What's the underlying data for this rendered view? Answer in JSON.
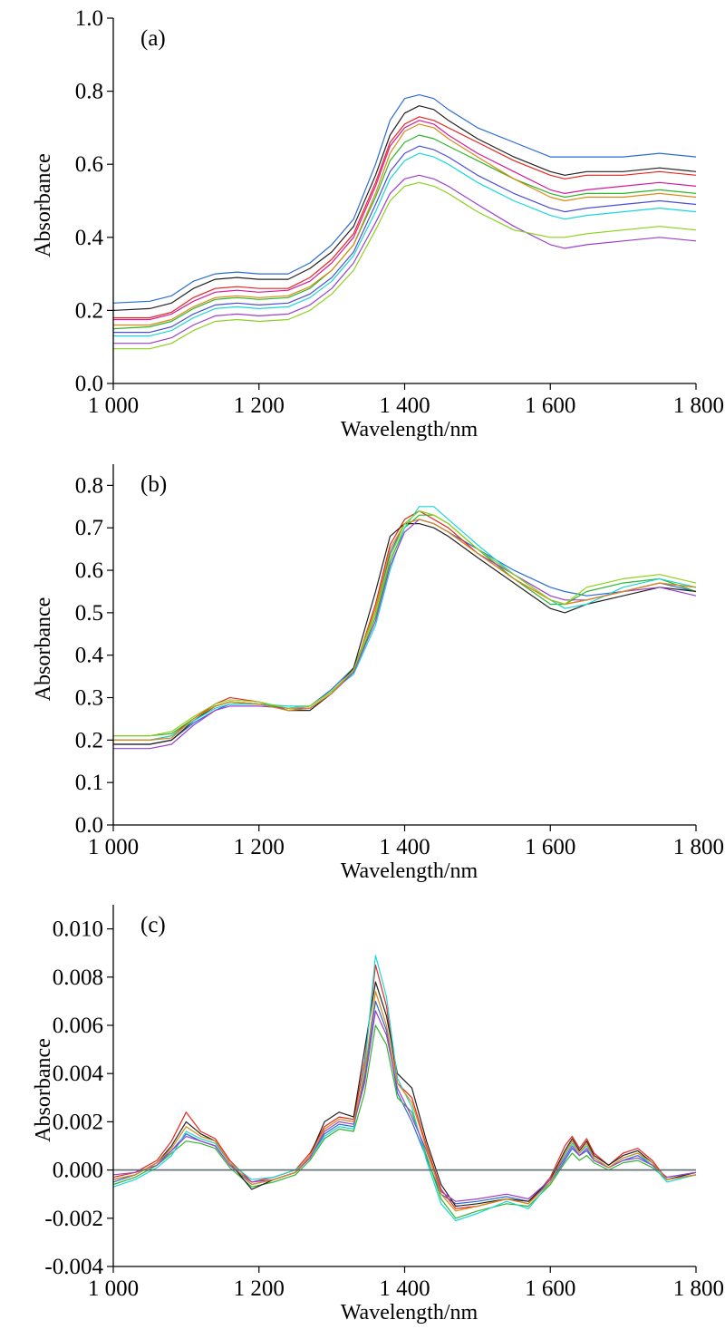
{
  "chart_data": [
    {
      "type": "line",
      "panel_label": "(a)",
      "xlabel": "Wavelength/nm",
      "ylabel": "Absorbance",
      "xlim": [
        1000,
        1800
      ],
      "ylim": [
        0.0,
        1.0
      ],
      "xticks": [
        1000,
        1200,
        1400,
        1600,
        1800
      ],
      "xtick_labels": [
        "1 000",
        "1 200",
        "1 400",
        "1 600",
        "1 800"
      ],
      "yticks": [
        0.0,
        0.2,
        0.4,
        0.6,
        0.8,
        1.0
      ],
      "ytick_labels": [
        "0.0",
        "0.2",
        "0.4",
        "0.6",
        "0.8",
        "1.0"
      ],
      "zero_line": false,
      "x": [
        1000,
        1050,
        1080,
        1110,
        1140,
        1170,
        1200,
        1240,
        1270,
        1300,
        1330,
        1360,
        1380,
        1400,
        1420,
        1440,
        1460,
        1500,
        1550,
        1600,
        1620,
        1650,
        1700,
        1750,
        1800
      ],
      "series": [
        {
          "color": "#2a6cd6",
          "values": [
            0.22,
            0.225,
            0.24,
            0.28,
            0.3,
            0.305,
            0.3,
            0.3,
            0.33,
            0.38,
            0.45,
            0.6,
            0.72,
            0.78,
            0.79,
            0.78,
            0.75,
            0.7,
            0.66,
            0.62,
            0.62,
            0.62,
            0.62,
            0.63,
            0.62
          ]
        },
        {
          "color": "#e8251f",
          "values": [
            0.18,
            0.18,
            0.195,
            0.235,
            0.26,
            0.265,
            0.26,
            0.26,
            0.29,
            0.34,
            0.41,
            0.55,
            0.66,
            0.71,
            0.73,
            0.72,
            0.7,
            0.66,
            0.61,
            0.57,
            0.56,
            0.57,
            0.57,
            0.58,
            0.57
          ]
        },
        {
          "color": "#2fb52c",
          "values": [
            0.15,
            0.155,
            0.17,
            0.205,
            0.23,
            0.235,
            0.23,
            0.235,
            0.26,
            0.31,
            0.38,
            0.51,
            0.61,
            0.66,
            0.68,
            0.67,
            0.65,
            0.61,
            0.56,
            0.52,
            0.51,
            0.52,
            0.52,
            0.53,
            0.52
          ]
        },
        {
          "color": "#222222",
          "values": [
            0.2,
            0.205,
            0.22,
            0.26,
            0.285,
            0.29,
            0.285,
            0.285,
            0.315,
            0.36,
            0.43,
            0.57,
            0.68,
            0.74,
            0.76,
            0.75,
            0.72,
            0.67,
            0.62,
            0.58,
            0.57,
            0.58,
            0.58,
            0.59,
            0.58
          ]
        },
        {
          "color": "#1ad6d6",
          "values": [
            0.13,
            0.13,
            0.145,
            0.18,
            0.205,
            0.21,
            0.205,
            0.21,
            0.235,
            0.28,
            0.35,
            0.47,
            0.56,
            0.61,
            0.63,
            0.62,
            0.6,
            0.55,
            0.5,
            0.46,
            0.45,
            0.46,
            0.47,
            0.48,
            0.47
          ]
        },
        {
          "color": "#9b3fd1",
          "values": [
            0.11,
            0.11,
            0.125,
            0.16,
            0.185,
            0.19,
            0.185,
            0.19,
            0.215,
            0.26,
            0.33,
            0.44,
            0.52,
            0.56,
            0.57,
            0.56,
            0.54,
            0.49,
            0.43,
            0.38,
            0.37,
            0.38,
            0.39,
            0.4,
            0.39
          ]
        },
        {
          "color": "#d98b12",
          "values": [
            0.16,
            0.16,
            0.175,
            0.21,
            0.235,
            0.24,
            0.235,
            0.24,
            0.265,
            0.31,
            0.38,
            0.52,
            0.63,
            0.69,
            0.71,
            0.7,
            0.67,
            0.62,
            0.56,
            0.51,
            0.5,
            0.51,
            0.51,
            0.52,
            0.51
          ]
        },
        {
          "color": "#8cd11a",
          "values": [
            0.095,
            0.095,
            0.11,
            0.145,
            0.17,
            0.175,
            0.17,
            0.175,
            0.2,
            0.245,
            0.31,
            0.42,
            0.5,
            0.54,
            0.55,
            0.54,
            0.52,
            0.47,
            0.42,
            0.4,
            0.4,
            0.41,
            0.42,
            0.43,
            0.42
          ]
        },
        {
          "color": "#d61a9a",
          "values": [
            0.175,
            0.175,
            0.19,
            0.225,
            0.25,
            0.255,
            0.25,
            0.255,
            0.28,
            0.33,
            0.4,
            0.54,
            0.65,
            0.7,
            0.72,
            0.71,
            0.68,
            0.63,
            0.58,
            0.53,
            0.52,
            0.53,
            0.54,
            0.55,
            0.54
          ]
        },
        {
          "color": "#4c4cd6",
          "values": [
            0.14,
            0.14,
            0.155,
            0.19,
            0.215,
            0.22,
            0.215,
            0.22,
            0.245,
            0.29,
            0.36,
            0.49,
            0.58,
            0.63,
            0.65,
            0.64,
            0.62,
            0.57,
            0.52,
            0.48,
            0.47,
            0.48,
            0.49,
            0.5,
            0.49
          ]
        }
      ]
    },
    {
      "type": "line",
      "panel_label": "(b)",
      "xlabel": "Wavelength/nm",
      "ylabel": "Absorbance",
      "xlim": [
        1000,
        1800
      ],
      "ylim": [
        0.0,
        0.85
      ],
      "xticks": [
        1000,
        1200,
        1400,
        1600,
        1800
      ],
      "xtick_labels": [
        "1 000",
        "1 200",
        "1 400",
        "1 600",
        "1 800"
      ],
      "yticks": [
        0.0,
        0.1,
        0.2,
        0.3,
        0.4,
        0.5,
        0.6,
        0.7,
        0.8
      ],
      "ytick_labels": [
        "0.0",
        "0.1",
        "0.2",
        "0.3",
        "0.4",
        "0.5",
        "0.6",
        "0.7",
        "0.8"
      ],
      "zero_line": false,
      "x": [
        1000,
        1050,
        1080,
        1110,
        1140,
        1160,
        1200,
        1240,
        1270,
        1300,
        1330,
        1360,
        1380,
        1400,
        1420,
        1440,
        1460,
        1500,
        1550,
        1600,
        1620,
        1650,
        1700,
        1750,
        1800
      ],
      "series": [
        {
          "color": "#2a6cd6",
          "values": [
            0.19,
            0.19,
            0.2,
            0.24,
            0.27,
            0.285,
            0.285,
            0.275,
            0.28,
            0.32,
            0.37,
            0.5,
            0.64,
            0.71,
            0.72,
            0.71,
            0.69,
            0.65,
            0.6,
            0.56,
            0.55,
            0.54,
            0.55,
            0.57,
            0.55
          ]
        },
        {
          "color": "#e8251f",
          "values": [
            0.2,
            0.2,
            0.21,
            0.25,
            0.285,
            0.3,
            0.29,
            0.27,
            0.275,
            0.31,
            0.36,
            0.52,
            0.66,
            0.72,
            0.74,
            0.72,
            0.7,
            0.64,
            0.58,
            0.53,
            0.52,
            0.53,
            0.55,
            0.57,
            0.56
          ]
        },
        {
          "color": "#2fb52c",
          "values": [
            0.21,
            0.21,
            0.215,
            0.25,
            0.28,
            0.29,
            0.285,
            0.275,
            0.28,
            0.315,
            0.36,
            0.49,
            0.62,
            0.7,
            0.73,
            0.73,
            0.71,
            0.65,
            0.58,
            0.52,
            0.52,
            0.55,
            0.57,
            0.58,
            0.55
          ]
        },
        {
          "color": "#222222",
          "values": [
            0.19,
            0.19,
            0.2,
            0.245,
            0.28,
            0.29,
            0.285,
            0.27,
            0.27,
            0.31,
            0.37,
            0.55,
            0.68,
            0.71,
            0.71,
            0.7,
            0.68,
            0.63,
            0.57,
            0.51,
            0.5,
            0.52,
            0.54,
            0.56,
            0.55
          ]
        },
        {
          "color": "#1ad6d6",
          "values": [
            0.2,
            0.2,
            0.21,
            0.245,
            0.275,
            0.285,
            0.285,
            0.28,
            0.28,
            0.315,
            0.355,
            0.47,
            0.6,
            0.7,
            0.75,
            0.75,
            0.72,
            0.66,
            0.59,
            0.53,
            0.51,
            0.52,
            0.56,
            0.58,
            0.56
          ]
        },
        {
          "color": "#9b3fd1",
          "values": [
            0.18,
            0.18,
            0.19,
            0.235,
            0.27,
            0.28,
            0.28,
            0.275,
            0.275,
            0.31,
            0.36,
            0.48,
            0.61,
            0.69,
            0.72,
            0.71,
            0.69,
            0.64,
            0.59,
            0.54,
            0.53,
            0.53,
            0.55,
            0.56,
            0.54
          ]
        },
        {
          "color": "#d98b12",
          "values": [
            0.2,
            0.2,
            0.205,
            0.25,
            0.28,
            0.29,
            0.285,
            0.27,
            0.275,
            0.31,
            0.365,
            0.51,
            0.65,
            0.71,
            0.72,
            0.71,
            0.69,
            0.64,
            0.58,
            0.53,
            0.52,
            0.53,
            0.55,
            0.57,
            0.56
          ]
        },
        {
          "color": "#8cd11a",
          "values": [
            0.21,
            0.21,
            0.22,
            0.255,
            0.285,
            0.295,
            0.29,
            0.275,
            0.28,
            0.315,
            0.365,
            0.5,
            0.63,
            0.71,
            0.74,
            0.73,
            0.71,
            0.65,
            0.59,
            0.53,
            0.52,
            0.56,
            0.58,
            0.59,
            0.57
          ]
        }
      ]
    },
    {
      "type": "line",
      "panel_label": "(c)",
      "xlabel": "Wavelength/nm",
      "ylabel": "Absorbance",
      "xlim": [
        1000,
        1800
      ],
      "ylim": [
        -0.004,
        0.011
      ],
      "xticks": [
        1000,
        1200,
        1400,
        1600,
        1800
      ],
      "xtick_labels": [
        "1 000",
        "1 200",
        "1 400",
        "1 600",
        "1 800"
      ],
      "yticks": [
        -0.004,
        -0.002,
        0.0,
        0.002,
        0.004,
        0.006,
        0.008,
        0.01
      ],
      "ytick_labels": [
        "-0.004",
        "-0.002",
        "0.000",
        "0.002",
        "0.004",
        "0.006",
        "0.008",
        "0.010"
      ],
      "zero_line": true,
      "x": [
        1000,
        1030,
        1060,
        1080,
        1100,
        1120,
        1140,
        1160,
        1190,
        1220,
        1250,
        1270,
        1290,
        1310,
        1330,
        1345,
        1360,
        1375,
        1390,
        1410,
        1430,
        1450,
        1470,
        1500,
        1540,
        1570,
        1600,
        1620,
        1630,
        1640,
        1650,
        1660,
        1680,
        1700,
        1720,
        1740,
        1760,
        1800
      ],
      "series": [
        {
          "color": "#2a6cd6",
          "values": [
            -0.0005,
            -0.0002,
            0.0003,
            0.0008,
            0.0015,
            0.0012,
            0.001,
            0.0002,
            -0.0006,
            -0.0004,
            -0.0001,
            0.0005,
            0.0015,
            0.0019,
            0.0018,
            0.0038,
            0.007,
            0.0058,
            0.0032,
            0.002,
            0.0005,
            -0.001,
            -0.0014,
            -0.0013,
            -0.0011,
            -0.0013,
            -0.0005,
            0.0004,
            0.0009,
            0.0006,
            0.0008,
            0.0004,
            0.0001,
            0.0004,
            0.0006,
            0.0002,
            -0.0003,
            -0.0001
          ]
        },
        {
          "color": "#e8251f",
          "values": [
            -0.0003,
            -0.0001,
            0.0004,
            0.0012,
            0.0024,
            0.0016,
            0.0013,
            0.0004,
            -0.0005,
            -0.0003,
            0.0,
            0.0007,
            0.0018,
            0.0022,
            0.0021,
            0.0045,
            0.0085,
            0.0068,
            0.0036,
            0.003,
            0.001,
            -0.0008,
            -0.0016,
            -0.0015,
            -0.0012,
            -0.0014,
            -0.0003,
            0.001,
            0.0014,
            0.0009,
            0.0013,
            0.0007,
            0.0002,
            0.0007,
            0.0009,
            0.0004,
            -0.0004,
            -0.0002
          ]
        },
        {
          "color": "#2fb52c",
          "values": [
            -0.0006,
            -0.0003,
            0.0002,
            0.0007,
            0.0012,
            0.0011,
            0.0009,
            0.0001,
            -0.0007,
            -0.0005,
            -0.0002,
            0.0004,
            0.0013,
            0.0017,
            0.0016,
            0.0032,
            0.006,
            0.0052,
            0.003,
            0.0024,
            0.0006,
            -0.0012,
            -0.002,
            -0.0017,
            -0.0014,
            -0.0015,
            -0.0006,
            0.0003,
            0.0007,
            0.0004,
            0.0006,
            0.0003,
            0.0,
            0.0003,
            0.0004,
            0.0001,
            -0.0004,
            -0.0002
          ]
        },
        {
          "color": "#222222",
          "values": [
            -0.0004,
            -0.0002,
            0.0003,
            0.001,
            0.002,
            0.0015,
            0.0012,
            0.0003,
            -0.0008,
            -0.0004,
            -0.0001,
            0.0006,
            0.002,
            0.0024,
            0.0022,
            0.005,
            0.0078,
            0.0064,
            0.004,
            0.0034,
            0.0012,
            -0.0006,
            -0.0015,
            -0.0014,
            -0.0012,
            -0.0013,
            -0.0004,
            0.0008,
            0.0013,
            0.0008,
            0.0012,
            0.0006,
            0.0002,
            0.0006,
            0.0008,
            0.0003,
            -0.0004,
            -0.0001
          ]
        },
        {
          "color": "#1ad6d6",
          "values": [
            -0.0007,
            -0.0004,
            0.0001,
            0.0006,
            0.0016,
            0.0013,
            0.0011,
            0.0003,
            -0.0004,
            -0.0003,
            0.0,
            0.0005,
            0.0014,
            0.0018,
            0.0017,
            0.0042,
            0.0089,
            0.0072,
            0.0038,
            0.0026,
            0.0004,
            -0.0014,
            -0.0021,
            -0.0018,
            -0.0013,
            -0.0016,
            -0.0005,
            0.0006,
            0.0011,
            0.0007,
            0.001,
            0.0005,
            0.0001,
            0.0005,
            0.0007,
            0.0002,
            -0.0005,
            -0.0002
          ]
        },
        {
          "color": "#9b3fd1",
          "values": [
            -0.0002,
            -0.0001,
            0.0002,
            0.0008,
            0.0014,
            0.0012,
            0.001,
            0.0002,
            -0.0005,
            -0.0004,
            -0.0001,
            0.0005,
            0.0016,
            0.002,
            0.0019,
            0.0036,
            0.0066,
            0.0056,
            0.0034,
            0.0022,
            0.0008,
            -0.0009,
            -0.0013,
            -0.0012,
            -0.001,
            -0.0012,
            -0.0004,
            0.0005,
            0.001,
            0.0006,
            0.0009,
            0.0004,
            0.0001,
            0.0004,
            0.0005,
            0.0002,
            -0.0003,
            -0.0001
          ]
        },
        {
          "color": "#d98b12",
          "values": [
            -0.0004,
            -0.0002,
            0.0003,
            0.0009,
            0.0018,
            0.0014,
            0.0012,
            0.0003,
            -0.0006,
            -0.0004,
            -0.0001,
            0.0006,
            0.0017,
            0.0021,
            0.002,
            0.004,
            0.0074,
            0.006,
            0.0036,
            0.0028,
            0.0009,
            -0.001,
            -0.0017,
            -0.0015,
            -0.0012,
            -0.0014,
            -0.0005,
            0.0007,
            0.0012,
            0.0007,
            0.0011,
            0.0005,
            0.0001,
            0.0005,
            0.0007,
            0.0003,
            -0.0004,
            -0.0002
          ]
        }
      ]
    }
  ]
}
